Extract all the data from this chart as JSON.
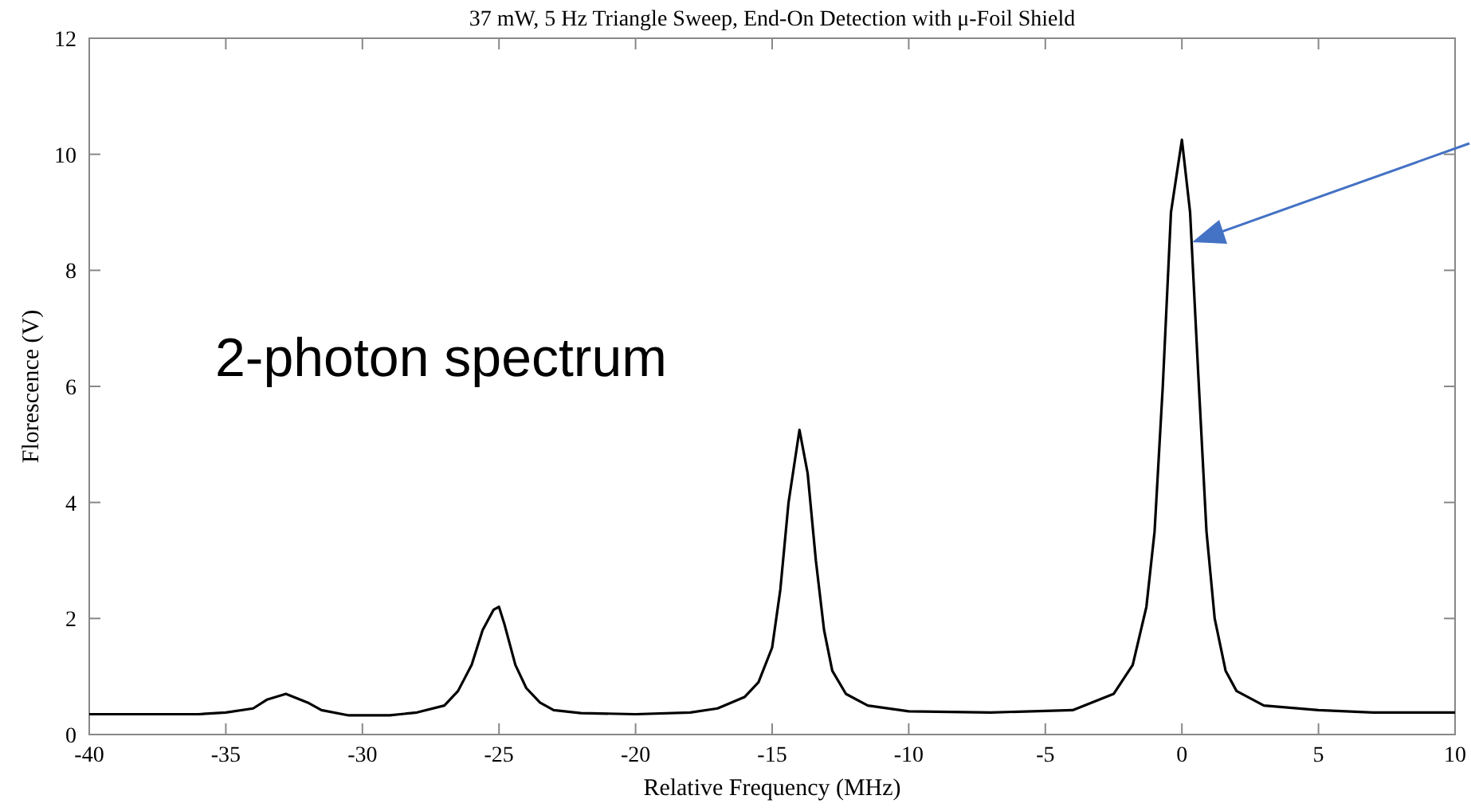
{
  "chart_data": {
    "type": "line",
    "title": "37 mW, 5 Hz Triangle Sweep, End-On Detection with μ-Foil Shield",
    "xlabel": "Relative Frequency (MHz)",
    "ylabel": "Florescence (V)",
    "annotations": [
      "2-photon spectrum"
    ],
    "xlim": [
      -40,
      10
    ],
    "xticks": [
      -40,
      -35,
      -30,
      -25,
      -20,
      -15,
      -10,
      -5,
      0,
      5,
      10
    ],
    "ylim": [
      0,
      12
    ],
    "yticks": [
      0,
      2,
      4,
      6,
      8,
      10,
      12
    ],
    "grid": false,
    "series": [
      {
        "color": "#000000",
        "x": [
          -40,
          -36,
          -35,
          -34,
          -33.5,
          -32.8,
          -32,
          -31.5,
          -30.5,
          -29,
          -28,
          -27,
          -26.5,
          -26,
          -25.6,
          -25.2,
          -25,
          -24.8,
          -24.4,
          -24,
          -23.5,
          -23,
          -22,
          -20,
          -18,
          -17,
          -16,
          -15.5,
          -15,
          -14.7,
          -14.4,
          -14,
          -13.7,
          -13.4,
          -13.1,
          -12.8,
          -12.3,
          -11.5,
          -10,
          -7,
          -4,
          -2.5,
          -1.8,
          -1.3,
          -1,
          -0.7,
          -0.4,
          0,
          0.3,
          0.6,
          0.9,
          1.2,
          1.6,
          2,
          3,
          5,
          7,
          10
        ],
        "values": [
          0.35,
          0.35,
          0.38,
          0.45,
          0.6,
          0.7,
          0.55,
          0.42,
          0.33,
          0.33,
          0.38,
          0.5,
          0.75,
          1.2,
          1.8,
          2.15,
          2.2,
          1.9,
          1.2,
          0.8,
          0.55,
          0.42,
          0.37,
          0.35,
          0.38,
          0.45,
          0.65,
          0.9,
          1.5,
          2.5,
          4,
          5.25,
          4.5,
          3,
          1.8,
          1.1,
          0.7,
          0.5,
          0.4,
          0.38,
          0.42,
          0.7,
          1.2,
          2.2,
          3.5,
          6,
          9,
          10.25,
          9,
          6.2,
          3.5,
          2,
          1.1,
          0.75,
          0.5,
          0.42,
          0.38,
          0.38
        ]
      }
    ]
  }
}
